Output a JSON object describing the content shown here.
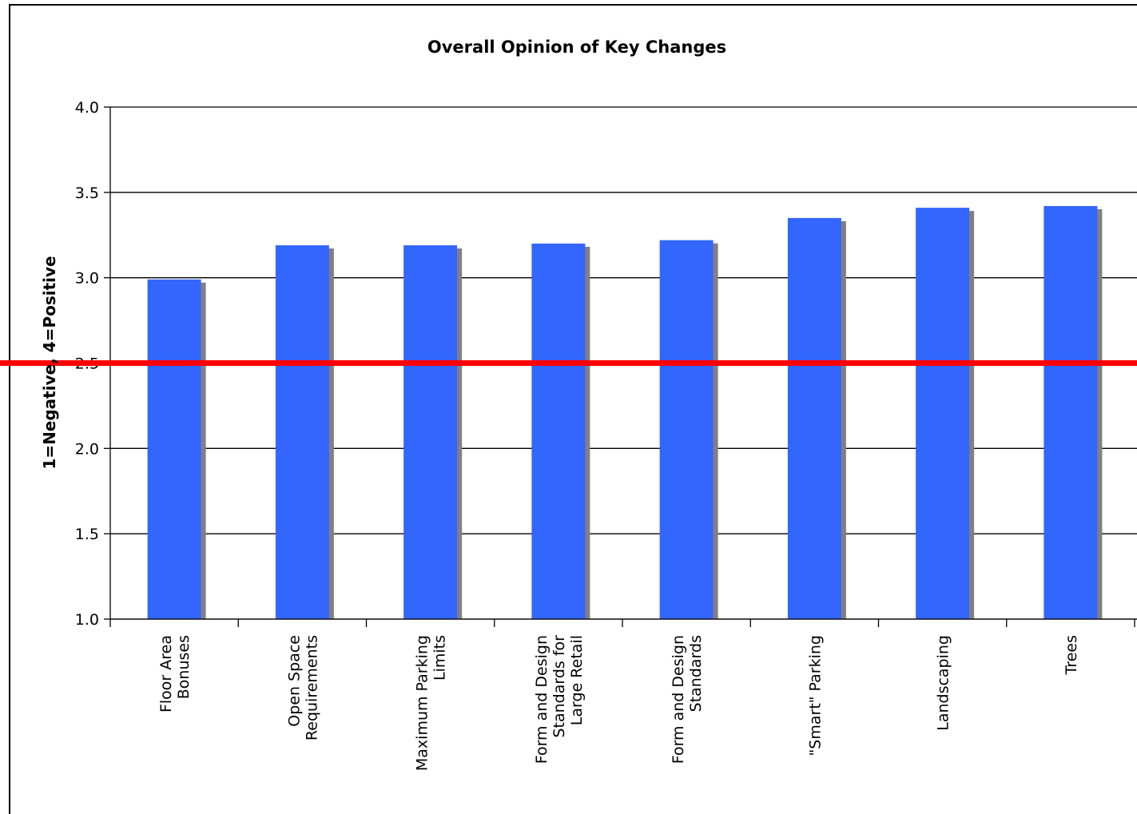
{
  "chart_data": {
    "type": "bar",
    "title": "Overall Opinion of Key Changes",
    "xlabel": "",
    "ylabel": "1=Negative, 4=Positive",
    "ylim": [
      1.0,
      4.0
    ],
    "yticks": [
      "1.0",
      "1.5",
      "2.0",
      "2.5",
      "3.0",
      "3.5",
      "4.0"
    ],
    "grid": true,
    "categories": [
      [
        "Floor Area",
        "Bonuses"
      ],
      [
        "Open Space",
        "Requirements"
      ],
      [
        "Maximum Parking",
        "Limits"
      ],
      [
        "Form and Design",
        "Standards for",
        "Large Retail"
      ],
      [
        "Form and Design",
        "Standards"
      ],
      [
        "\"Smart\" Parking"
      ],
      [
        "Landscaping"
      ],
      [
        "Trees"
      ]
    ],
    "values": [
      2.99,
      3.19,
      3.19,
      3.2,
      3.22,
      3.35,
      3.41,
      3.42
    ],
    "reference_line": {
      "value": 2.5,
      "color": "#ff0000"
    },
    "colors": {
      "bar": "#3366ff",
      "shadow": "#808080",
      "grid": "#000000"
    }
  }
}
